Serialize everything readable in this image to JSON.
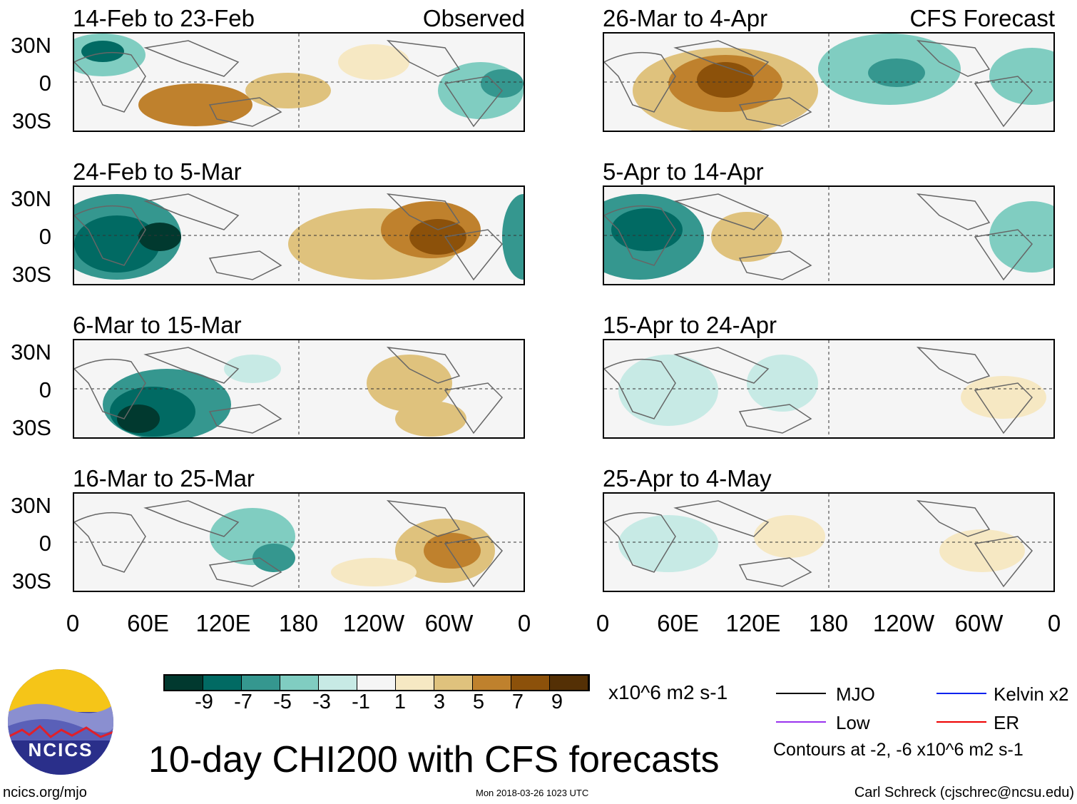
{
  "panels_left": [
    {
      "title": "14-Feb to 23-Feb",
      "tag": "Observed"
    },
    {
      "title": "24-Feb to 5-Mar"
    },
    {
      "title": "6-Mar to 15-Mar"
    },
    {
      "title": "16-Mar to 25-Mar"
    }
  ],
  "panels_right": [
    {
      "title": "26-Mar to 4-Apr",
      "tag": "CFS Forecast"
    },
    {
      "title": "5-Apr to 14-Apr"
    },
    {
      "title": "15-Apr to 24-Apr"
    },
    {
      "title": "25-Apr to 4-May"
    }
  ],
  "lat_ticks": [
    "30N",
    "0",
    "30S"
  ],
  "lon_ticks": [
    "0",
    "60E",
    "120E",
    "180",
    "120W",
    "60W",
    "0"
  ],
  "colorbar": {
    "colors": [
      "#01392f",
      "#016a63",
      "#35978f",
      "#80cdc1",
      "#c7eae5",
      "#f5f5f5",
      "#f6e8c3",
      "#dfc27d",
      "#bf812d",
      "#8c510a",
      "#543005"
    ],
    "labels": [
      "-9",
      "-7",
      "-5",
      "-3",
      "-1",
      "1",
      "3",
      "5",
      "7",
      "9"
    ],
    "units": "x10^6 m2 s-1"
  },
  "legend": {
    "items": [
      {
        "label": "MJO",
        "color": "#000000"
      },
      {
        "label": "Kelvin x2",
        "color": "#0022ee"
      },
      {
        "label": "Low",
        "color": "#9933ee"
      },
      {
        "label": "ER",
        "color": "#ee0000"
      }
    ],
    "contours": "Contours at -2, -6 x10^6 m2 s-1"
  },
  "title": "10-day CHI200 with CFS forecasts",
  "logo_text": "NCICS",
  "footer": {
    "url": "ncics.org/mjo",
    "timestamp": "Mon 2018-03-26 1023 UTC",
    "author": "Carl Schreck (cjschrec@ncsu.edu)"
  }
}
